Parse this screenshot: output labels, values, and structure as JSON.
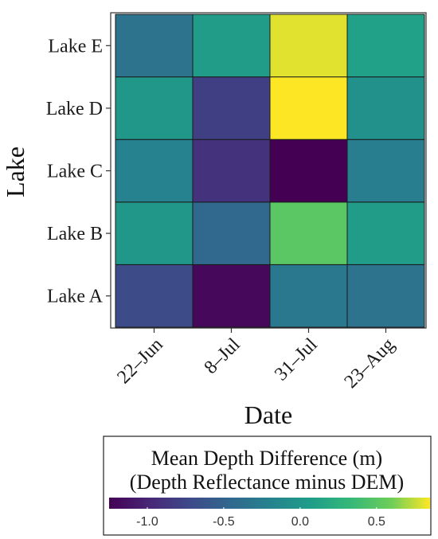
{
  "chart_data": {
    "type": "heatmap",
    "xlabel": "Date",
    "ylabel": "Lake",
    "x_categories": [
      "22–Jun",
      "8–Jul",
      "31–Jul",
      "23–Aug"
    ],
    "y_categories": [
      "Lake A",
      "Lake B",
      "Lake C",
      "Lake D",
      "Lake E"
    ],
    "values": [
      [
        -0.7,
        -1.2,
        -0.3,
        -0.35
      ],
      [
        0.0,
        -0.45,
        0.5,
        0.05
      ],
      [
        -0.2,
        -0.9,
        -1.25,
        -0.25
      ],
      [
        0.0,
        -0.8,
        0.85,
        -0.05
      ],
      [
        -0.35,
        0.05,
        0.8,
        0.1
      ]
    ],
    "colorbar": {
      "title_line1": "Mean Depth Difference (m)",
      "title_line2": "(Depth Reflectance minus DEM)",
      "ticks": [
        "-1.0",
        "-0.5",
        "0.0",
        "0.5"
      ],
      "tick_values": [
        -1.0,
        -0.5,
        0.0,
        0.5
      ],
      "range": [
        -1.25,
        0.85
      ],
      "colormap": "viridis",
      "placement": "bottom"
    }
  }
}
